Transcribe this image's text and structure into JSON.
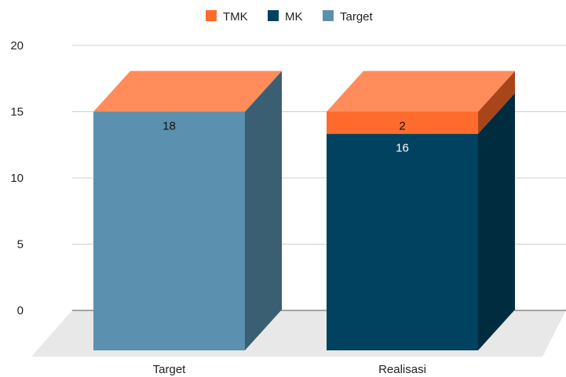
{
  "chart_data": {
    "type": "bar",
    "stacked": true,
    "three_d": true,
    "title": "",
    "xlabel": "",
    "ylabel": "",
    "ylim": [
      0,
      20
    ],
    "yticks": [
      0,
      5,
      10,
      15,
      20
    ],
    "grid": true,
    "legend_position": "top",
    "categories": [
      "Target",
      "Realisasi"
    ],
    "series": [
      {
        "name": "Target",
        "values": [
          18,
          0
        ],
        "color": "#5b91ae",
        "side_color": "#3b5f72"
      },
      {
        "name": "MK",
        "values": [
          0,
          16
        ],
        "color": "#00425f",
        "side_color": "#002c40"
      },
      {
        "name": "TMK",
        "values": [
          0,
          2
        ],
        "color": "#ff6b2c",
        "side_color": "#a8451b"
      }
    ],
    "top_color": "#ff8c5a",
    "floor_color": "#e8e8e8",
    "legend": [
      {
        "name": "TMK",
        "color": "#ff6b2c"
      },
      {
        "name": "MK",
        "color": "#00425f"
      },
      {
        "name": "Target",
        "color": "#5b91ae"
      }
    ],
    "data_labels": [
      {
        "category": "Target",
        "series": "Target",
        "text": "18",
        "color": "#111111"
      },
      {
        "category": "Realisasi",
        "series": "TMK",
        "text": "2",
        "color": "#111111"
      },
      {
        "category": "Realisasi",
        "series": "MK",
        "text": "16",
        "color": "#ffffff"
      }
    ]
  }
}
